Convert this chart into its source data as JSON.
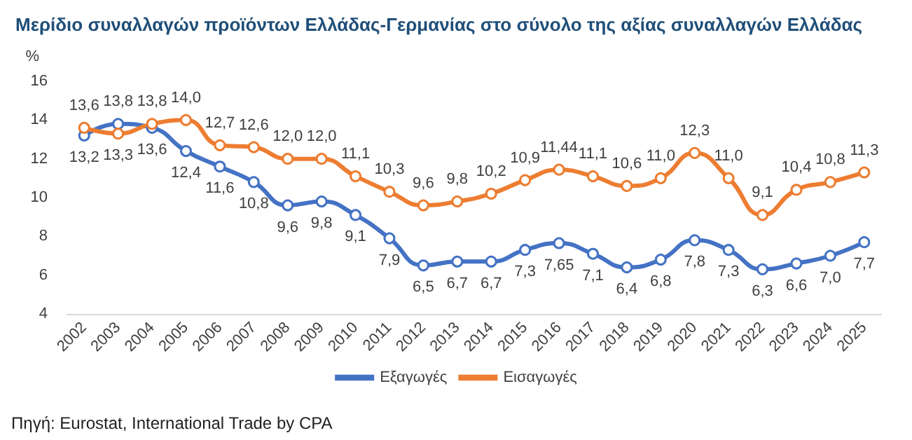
{
  "chart_data": {
    "type": "line",
    "title": "Μερίδιο συναλλαγών προϊόντων Ελλάδας-Γερμανίας στο σύνολο της αξίας συναλλαγών Ελλάδας",
    "ylabel": "%",
    "annotations": [
      "Πηγή: Eurostat, International Trade by CPA"
    ],
    "categories": [
      "2002",
      "2003",
      "2004",
      "2005",
      "2006",
      "2007",
      "2008",
      "2009",
      "2010",
      "2011",
      "2012",
      "2013",
      "2014",
      "2015",
      "2016",
      "2017",
      "2018",
      "2019",
      "2020",
      "2021",
      "2022",
      "2023",
      "2024",
      "2025"
    ],
    "series": [
      {
        "name": "Εξαγωγές",
        "color": "#4472c4",
        "values": [
          13.2,
          13.8,
          13.6,
          12.4,
          11.6,
          10.8,
          9.6,
          9.8,
          9.1,
          7.9,
          6.5,
          6.7,
          6.7,
          7.3,
          7.65,
          7.1,
          6.4,
          6.8,
          7.8,
          7.3,
          6.3,
          6.6,
          7.0,
          7.7
        ],
        "value_labels": [
          "13,2",
          "13,8",
          "13,6",
          "12,4",
          "11,6",
          "10,8",
          "9,6",
          "9,8",
          "9,1",
          "7,9",
          "6,5",
          "6,7",
          "6,7",
          "7,3",
          "7,65",
          "7,1",
          "6,4",
          "6,8",
          "7,8",
          "7,3",
          "6,3",
          "6,6",
          "7,0",
          "7,7"
        ]
      },
      {
        "name": "Εισαγωγές",
        "color": "#ed7d31",
        "values": [
          13.6,
          13.3,
          13.8,
          14.0,
          12.7,
          12.6,
          12.0,
          12.0,
          11.1,
          10.3,
          9.6,
          9.8,
          10.2,
          10.9,
          11.44,
          11.1,
          10.6,
          11.0,
          12.3,
          11.0,
          9.1,
          10.4,
          10.8,
          11.3
        ],
        "value_labels": [
          "13,6",
          "13,3",
          "13,8",
          "14,0",
          "12,7",
          "12,6",
          "12,0",
          "12,0",
          "11,1",
          "10,3",
          "9,6",
          "9,8",
          "10,2",
          "10,9",
          "11,44",
          "11,1",
          "10,6",
          "11,0",
          "12,3",
          "11,0",
          "9,1",
          "10,4",
          "10,8",
          "11,3"
        ]
      }
    ],
    "ylim": [
      4,
      16
    ],
    "yticks": [
      4,
      6,
      8,
      10,
      12,
      14,
      16
    ],
    "grid": false,
    "legend": "bottom",
    "marker": "circle",
    "line_style": "solid"
  }
}
